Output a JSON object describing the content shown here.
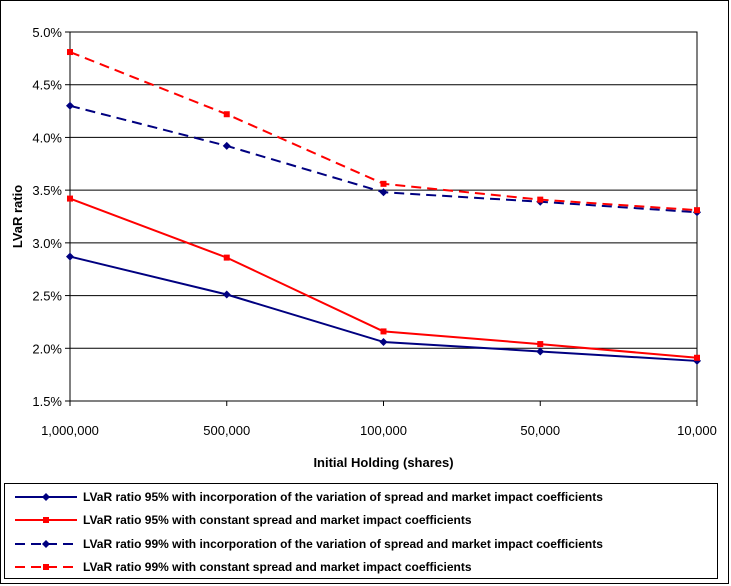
{
  "chart_data": {
    "type": "line",
    "title": "",
    "xlabel": "Initial Holding (shares)",
    "ylabel": "LVaR ratio",
    "categories": [
      "1,000,000",
      "500,000",
      "100,000",
      "50,000",
      "10,000"
    ],
    "y_ticks": [
      "1.5%",
      "2.0%",
      "2.5%",
      "3.0%",
      "3.5%",
      "4.0%",
      "4.5%",
      "5.0%"
    ],
    "ylim": [
      1.5,
      5.0
    ],
    "y_unit": "%",
    "grid": "horizontal",
    "legend_position": "bottom",
    "series": [
      {
        "name": "LVaR ratio 95% with incorporation of the variation of spread and market impact coefficients",
        "values": [
          2.87,
          2.51,
          2.06,
          1.97,
          1.88
        ],
        "color": "#000080",
        "dash": "solid",
        "marker": "diamond"
      },
      {
        "name": "LVaR ratio 95% with constant spread and market impact coefficients",
        "values": [
          3.42,
          2.86,
          2.16,
          2.04,
          1.91
        ],
        "color": "#ff0000",
        "dash": "solid",
        "marker": "square"
      },
      {
        "name": "LVaR ratio 99% with incorporation of the variation of spread and market impact coefficients",
        "values": [
          4.3,
          3.92,
          3.48,
          3.39,
          3.29
        ],
        "color": "#000080",
        "dash": "dashed",
        "marker": "diamond"
      },
      {
        "name": "LVaR ratio 99% with constant spread and market impact coefficients",
        "values": [
          4.81,
          4.22,
          3.56,
          3.41,
          3.31
        ],
        "color": "#ff0000",
        "dash": "dashed",
        "marker": "square"
      }
    ]
  }
}
